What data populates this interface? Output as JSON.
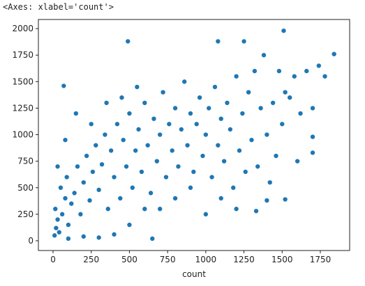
{
  "output_text": "<Axes: xlabel='count'>",
  "chart_data": {
    "type": "scatter",
    "xlabel": "count",
    "color": "#1f77b4",
    "x": [
      10,
      20,
      30,
      15,
      40,
      60,
      80,
      50,
      100,
      120,
      90,
      140,
      160,
      180,
      200,
      220,
      240,
      260,
      280,
      300,
      320,
      340,
      360,
      380,
      400,
      420,
      440,
      460,
      480,
      500,
      520,
      540,
      560,
      580,
      600,
      620,
      640,
      660,
      680,
      700,
      720,
      740,
      760,
      780,
      800,
      820,
      840,
      860,
      880,
      900,
      920,
      940,
      960,
      980,
      1000,
      1020,
      1040,
      1060,
      1080,
      1100,
      1120,
      1140,
      1160,
      1180,
      1200,
      1220,
      1240,
      1260,
      1280,
      1300,
      1320,
      1340,
      1360,
      1380,
      1400,
      1420,
      1440,
      1460,
      1480,
      1500,
      1520,
      1550,
      1580,
      1620,
      1660,
      1700,
      1740,
      1780,
      1840,
      1510,
      490,
      1080,
      1250,
      70,
      1700,
      1700,
      1400,
      1520,
      1330,
      650,
      300,
      400,
      100,
      200,
      500,
      700,
      900,
      1100,
      1200,
      1000,
      1600,
      250,
      350,
      450,
      550,
      150,
      80,
      30,
      600,
      800
    ],
    "y": [
      50,
      120,
      200,
      300,
      80,
      250,
      400,
      500,
      150,
      350,
      600,
      450,
      700,
      250,
      550,
      800,
      380,
      650,
      900,
      480,
      720,
      1000,
      300,
      850,
      600,
      1100,
      400,
      950,
      700,
      1200,
      500,
      850,
      1050,
      650,
      1300,
      900,
      450,
      1150,
      750,
      1000,
      1400,
      600,
      1100,
      850,
      1250,
      700,
      1050,
      1500,
      900,
      1200,
      650,
      1100,
      1350,
      800,
      1000,
      1250,
      600,
      1450,
      900,
      1150,
      750,
      1300,
      1050,
      500,
      1550,
      850,
      1200,
      650,
      1400,
      950,
      1600,
      700,
      1250,
      1750,
      1000,
      550,
      1300,
      800,
      1600,
      1100,
      1400,
      1350,
      1550,
      1200,
      1600,
      1250,
      1650,
      1550,
      1760,
      1980,
      1880,
      1880,
      1880,
      1460,
      980,
      830,
      380,
      390,
      280,
      20,
      30,
      60,
      20,
      40,
      150,
      300,
      500,
      400,
      300,
      250,
      750,
      1100,
      1300,
      1350,
      1450,
      1200,
      950,
      700,
      300,
      400
    ],
    "xlim": [
      -96,
      1942
    ],
    "ylim": [
      -92,
      2086
    ],
    "xticks": [
      0,
      250,
      500,
      750,
      1000,
      1250,
      1500,
      1750
    ],
    "yticks": [
      0,
      250,
      500,
      750,
      1000,
      1250,
      1500,
      1750,
      2000
    ]
  }
}
